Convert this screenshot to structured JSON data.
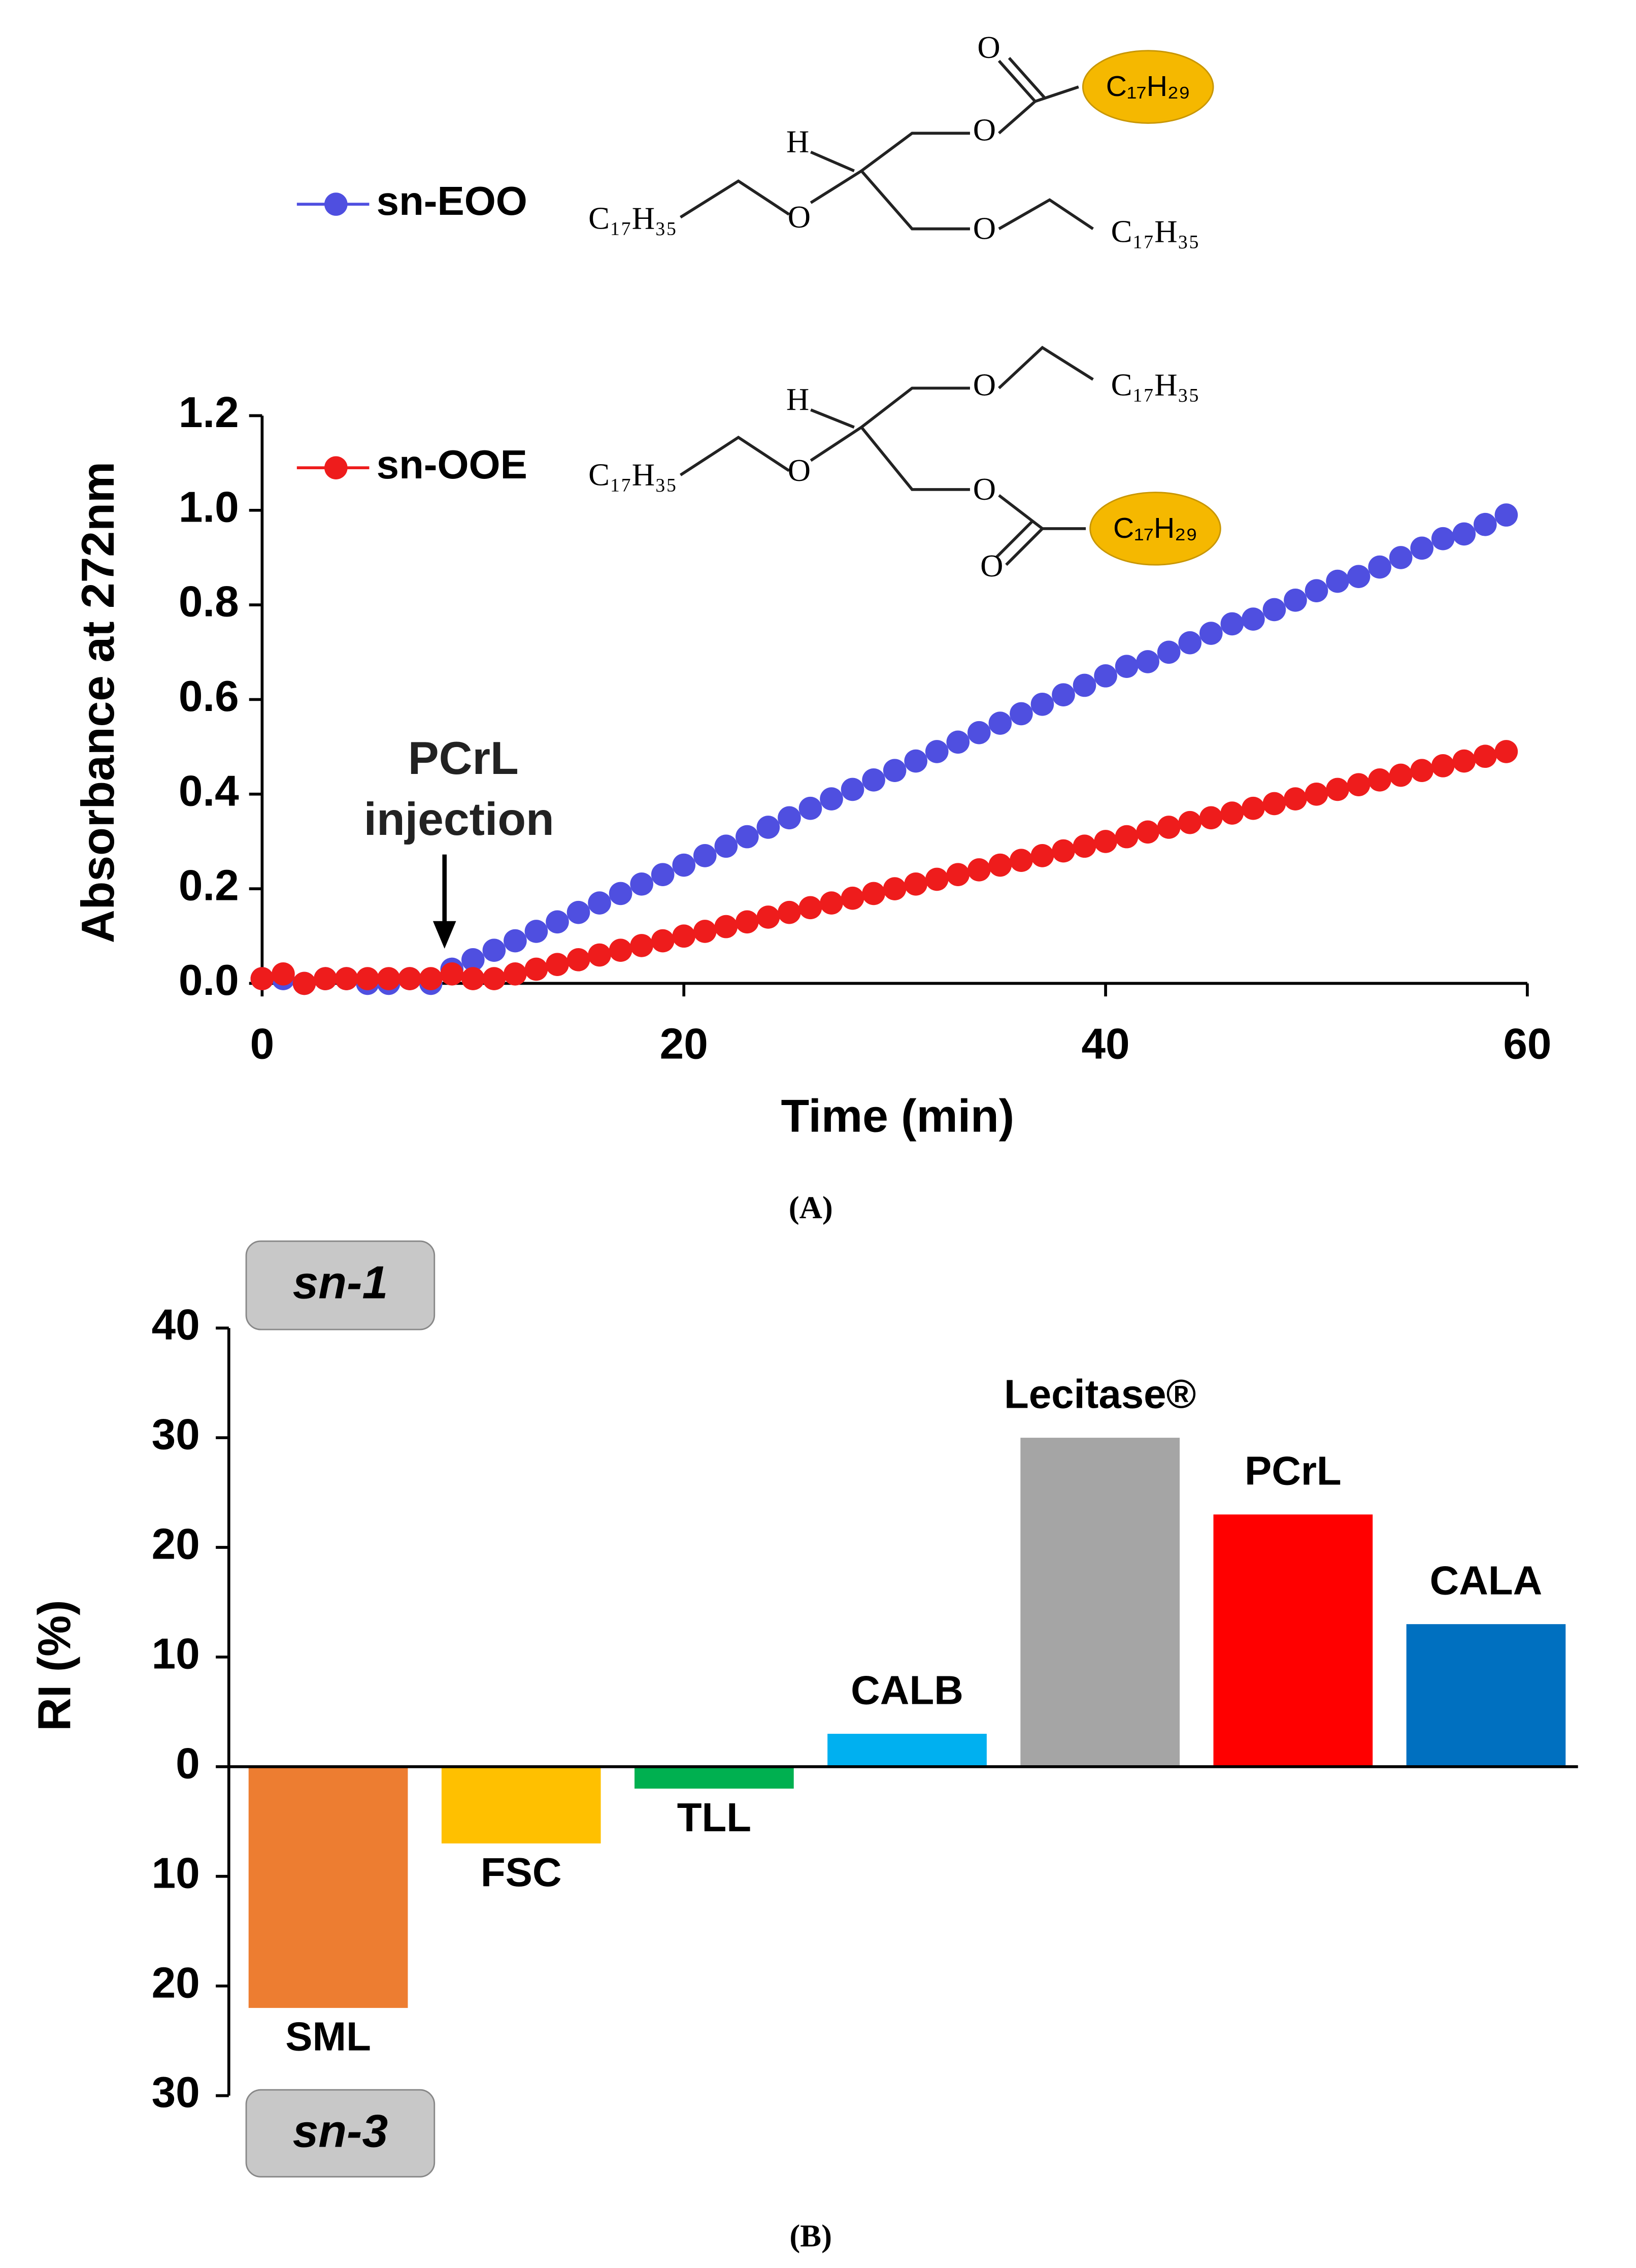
{
  "captions": [
    "(A)",
    "(B)"
  ],
  "structures": [
    {
      "atoms": [
        "O",
        "O",
        "H",
        "O",
        "O"
      ],
      "groups": [
        "C₁₇H₃₅",
        "C₁₇H₃₅"
      ],
      "acyl": "C₁₇H₂₉"
    },
    {
      "atoms": [
        "O",
        "H",
        "O",
        "O",
        "O"
      ],
      "groups": [
        "C₁₇H₃₅",
        "C₁₇H₃₅"
      ],
      "acyl": "C₁₇H₂₉"
    }
  ],
  "chart_data": [
    {
      "type": "scatter",
      "xlabel": "Time (min)",
      "ylabel": "Absorbance at 272nm",
      "annotation": [
        "PCrL",
        "injection"
      ],
      "x": [
        0,
        1,
        2,
        3,
        4,
        5,
        6,
        7,
        8,
        9,
        10,
        11,
        12,
        13,
        14,
        15,
        16,
        17,
        18,
        19,
        20,
        21,
        22,
        23,
        24,
        25,
        26,
        27,
        28,
        29,
        30,
        31,
        32,
        33,
        34,
        35,
        36,
        37,
        38,
        39,
        40,
        41,
        42,
        43,
        44,
        45,
        46,
        47,
        48,
        49,
        50,
        51,
        52,
        53,
        54,
        55,
        56,
        57,
        58,
        59
      ],
      "series": [
        {
          "name": "sn-EOO",
          "color": "#4f4fe0",
          "values": [
            0.01,
            0.01,
            0.0,
            0.01,
            0.01,
            0.0,
            0.0,
            0.01,
            0.0,
            0.03,
            0.05,
            0.07,
            0.09,
            0.11,
            0.13,
            0.15,
            0.17,
            0.19,
            0.21,
            0.23,
            0.25,
            0.27,
            0.29,
            0.31,
            0.33,
            0.35,
            0.37,
            0.39,
            0.41,
            0.43,
            0.45,
            0.47,
            0.49,
            0.51,
            0.53,
            0.55,
            0.57,
            0.59,
            0.61,
            0.63,
            0.65,
            0.67,
            0.68,
            0.7,
            0.72,
            0.74,
            0.76,
            0.77,
            0.79,
            0.81,
            0.83,
            0.85,
            0.86,
            0.88,
            0.9,
            0.92,
            0.94,
            0.95,
            0.97,
            0.99
          ]
        },
        {
          "name": "sn-OOE",
          "color": "#ee1c1c",
          "values": [
            0.01,
            0.02,
            0.0,
            0.01,
            0.01,
            0.01,
            0.01,
            0.01,
            0.01,
            0.02,
            0.01,
            0.01,
            0.02,
            0.03,
            0.04,
            0.05,
            0.06,
            0.07,
            0.08,
            0.09,
            0.1,
            0.11,
            0.12,
            0.13,
            0.14,
            0.15,
            0.16,
            0.17,
            0.18,
            0.19,
            0.2,
            0.21,
            0.22,
            0.23,
            0.24,
            0.25,
            0.26,
            0.27,
            0.28,
            0.29,
            0.3,
            0.31,
            0.32,
            0.33,
            0.34,
            0.35,
            0.36,
            0.37,
            0.38,
            0.39,
            0.4,
            0.41,
            0.42,
            0.43,
            0.44,
            0.45,
            0.46,
            0.47,
            0.48,
            0.49
          ]
        }
      ],
      "xlim": [
        0,
        60
      ],
      "xticks": [
        0,
        20,
        40,
        60
      ],
      "ylim": [
        0,
        1.2
      ],
      "yticks": [
        {
          "value": 0,
          "label": "0.0"
        },
        {
          "value": 0.2,
          "label": "0.2"
        },
        {
          "value": 0.4,
          "label": "0.4"
        },
        {
          "value": 0.6,
          "label": "0.6"
        },
        {
          "value": 0.8,
          "label": "0.8"
        },
        {
          "value": 1.0,
          "label": "1.0"
        },
        {
          "value": 1.2,
          "label": "1.2"
        }
      ]
    },
    {
      "type": "bar",
      "ylabel": "RI (%)",
      "region_labels": [
        "sn-1",
        "sn-3"
      ],
      "categories": [
        "SML",
        "FSC",
        "TLL",
        "CALB",
        "Lecitase®",
        "PCrL",
        "CALA"
      ],
      "values": [
        -22,
        -7,
        -2,
        3,
        30,
        23,
        13
      ],
      "colors": [
        "#ed7d31",
        "#ffc000",
        "#00b050",
        "#00b0f0",
        "#a5a5a5",
        "#ff0000",
        "#0070c0"
      ],
      "ylim": [
        -30,
        40
      ],
      "yticks": [
        {
          "value": -30,
          "label": "30"
        },
        {
          "value": -20,
          "label": "20"
        },
        {
          "value": -10,
          "label": "10"
        },
        0,
        10,
        20,
        30,
        40
      ]
    }
  ]
}
